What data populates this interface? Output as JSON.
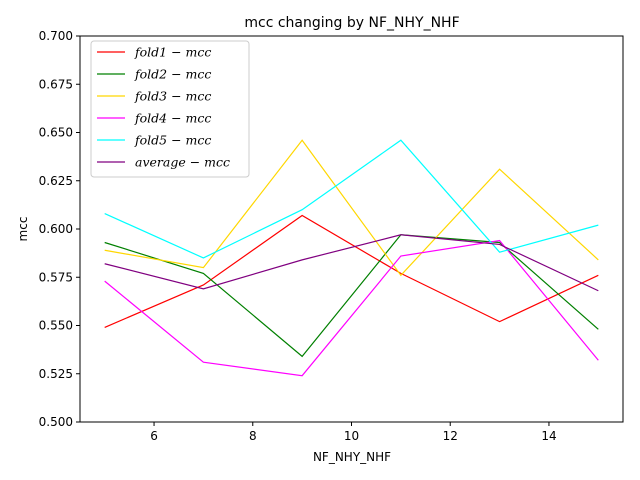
{
  "chart_data": {
    "type": "line",
    "title": "mcc changing by NF_NHY_NHF",
    "xlabel": "NF_NHY_NHF",
    "ylabel": "mcc",
    "xlim": [
      4.5,
      15.5
    ],
    "ylim": [
      0.5,
      0.7
    ],
    "xticks": [
      6,
      8,
      10,
      12,
      14
    ],
    "yticks": [
      0.5,
      0.525,
      0.55,
      0.575,
      0.6,
      0.625,
      0.65,
      0.675,
      0.7
    ],
    "xtick_labels": [
      "6",
      "8",
      "10",
      "12",
      "14"
    ],
    "ytick_labels": [
      "0.500",
      "0.525",
      "0.550",
      "0.575",
      "0.600",
      "0.625",
      "0.650",
      "0.675",
      "0.700"
    ],
    "grid": false,
    "legend_position": "top-left",
    "x": [
      5,
      7,
      9,
      11,
      13,
      15
    ],
    "series": [
      {
        "name": "fold1 − mcc",
        "color": "#ff0000",
        "values": [
          0.549,
          0.571,
          0.607,
          0.577,
          0.552,
          0.576
        ]
      },
      {
        "name": "fold2 − mcc",
        "color": "#008000",
        "values": [
          0.593,
          0.577,
          0.534,
          0.597,
          0.593,
          0.548
        ]
      },
      {
        "name": "fold3 − mcc",
        "color": "#ffd700",
        "values": [
          0.589,
          0.58,
          0.646,
          0.576,
          0.631,
          0.584
        ]
      },
      {
        "name": "fold4 − mcc",
        "color": "#ff00ff",
        "values": [
          0.573,
          0.531,
          0.524,
          0.586,
          0.594,
          0.532
        ]
      },
      {
        "name": "fold5 − mcc",
        "color": "#00ffff",
        "values": [
          0.608,
          0.585,
          0.61,
          0.646,
          0.588,
          0.602
        ]
      },
      {
        "name": "average − mcc",
        "color": "#800080",
        "values": [
          0.582,
          0.569,
          0.584,
          0.597,
          0.592,
          0.568
        ]
      }
    ]
  }
}
